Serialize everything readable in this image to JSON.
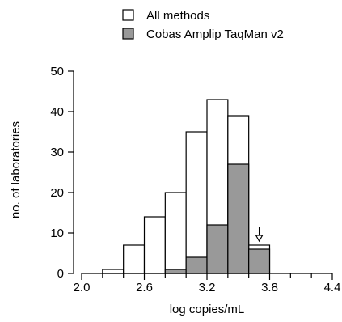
{
  "chart_data": {
    "type": "bar",
    "title": "",
    "xlabel": "log copies/mL",
    "ylabel": "no. of laboratories",
    "xlim": [
      2.0,
      4.4
    ],
    "ylim": [
      0,
      50
    ],
    "bin_width": 0.2,
    "x_ticks": [
      2.0,
      2.6,
      3.2,
      3.8,
      4.4
    ],
    "x_tick_labels": [
      "2.0",
      "2.6",
      "3.2",
      "3.8",
      "4.4"
    ],
    "y_ticks": [
      0,
      10,
      20,
      30,
      40,
      50
    ],
    "y_tick_labels": [
      "0",
      "10",
      "20",
      "30",
      "40",
      "50"
    ],
    "bin_starts": [
      2.0,
      2.2,
      2.4,
      2.6,
      2.8,
      3.0,
      3.2,
      3.4,
      3.6,
      3.8,
      4.0,
      4.2
    ],
    "series": [
      {
        "name": "All methods",
        "color": "#ffffff",
        "values": [
          0,
          1,
          7,
          14,
          20,
          35,
          43,
          39,
          7,
          0,
          0,
          0
        ]
      },
      {
        "name": "Cobas Amplip TaqMan v2",
        "color": "#999999",
        "values": [
          0,
          0,
          0,
          0,
          1,
          4,
          12,
          27,
          6,
          0,
          0,
          0
        ]
      }
    ],
    "arrow_at": 3.7,
    "legend_position": "top"
  }
}
